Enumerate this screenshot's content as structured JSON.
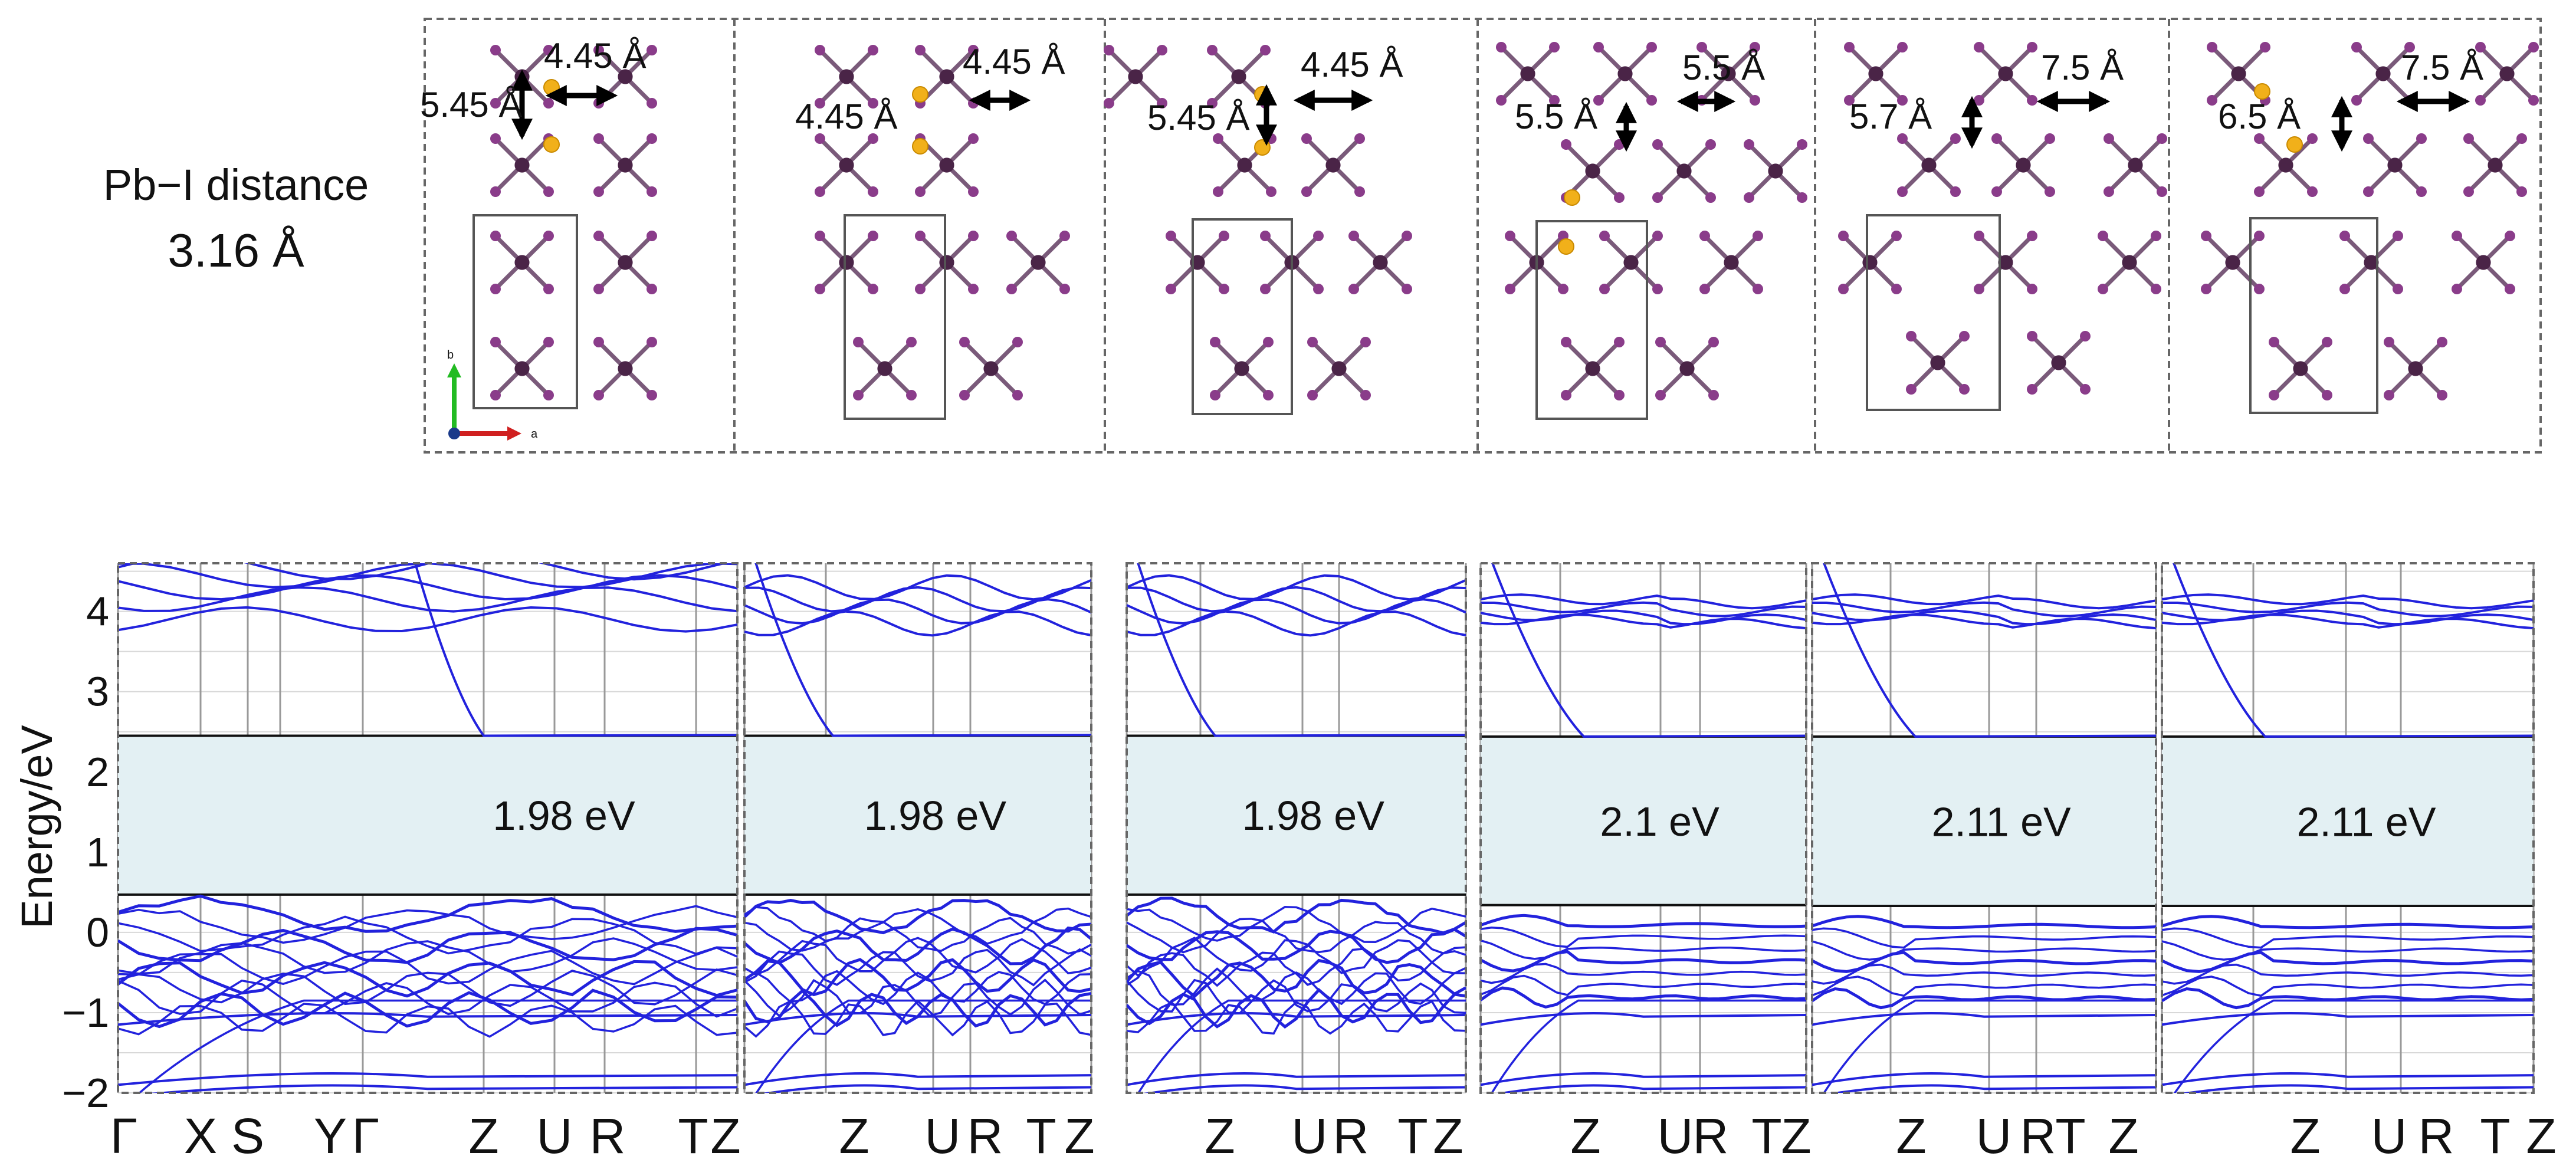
{
  "colors": {
    "atom_pb": "#4a2447",
    "atom_i": "#8a3c8a",
    "atom_li": "#f1b01a",
    "band": "#2222dd",
    "gap_fill": "#e3f0f3"
  },
  "structure_row": {
    "left_label_line1": "Pb−I distance",
    "left_label_line2": "3.16 Å",
    "axes_labels": {
      "b": "b",
      "a": "a"
    },
    "panels": [
      {
        "vertical_distance": "5.45 Å",
        "horizontal_distance": "4.45 Å"
      },
      {
        "vertical_distance": "4.45 Å",
        "horizontal_distance": "4.45 Å"
      },
      {
        "vertical_distance": "5.45 Å",
        "horizontal_distance": "4.45 Å"
      },
      {
        "vertical_distance": "5.5 Å",
        "horizontal_distance": "5.5 Å"
      },
      {
        "vertical_distance": "5.7 Å",
        "horizontal_distance": "7.5 Å"
      },
      {
        "vertical_distance": "6.5 Å",
        "horizontal_distance": "7.5 Å"
      }
    ]
  },
  "chart_data": {
    "type": "line",
    "title": "",
    "ylabel": "Energy/eV",
    "xlabel": "",
    "ylim": [
      -2,
      4.6
    ],
    "y_ticks": [
      -2,
      -1,
      0,
      1,
      2,
      3,
      4
    ],
    "y_tick_labels": [
      "−2",
      "−1",
      "0",
      "1",
      "2",
      "3",
      "4"
    ],
    "panels": [
      {
        "k_labels": [
          "Γ",
          "X",
          "S",
          "Y",
          "Γ",
          "Z",
          "U",
          "R",
          "T",
          "Z"
        ],
        "gap_label": "1.98 eV",
        "band_gap_eV": 1.98,
        "cbm": 2.45,
        "vbm": 0.47
      },
      {
        "k_labels": [
          "Z",
          "U",
          "R",
          "T",
          "Z"
        ],
        "gap_label": "1.98 eV",
        "band_gap_eV": 1.98,
        "cbm": 2.45,
        "vbm": 0.47
      },
      {
        "k_labels": [
          "Z",
          "U",
          "R",
          "T",
          "Z"
        ],
        "gap_label": "1.98 eV",
        "band_gap_eV": 1.98,
        "cbm": 2.45,
        "vbm": 0.47
      },
      {
        "k_labels": [
          "Z",
          "U",
          "R",
          "T",
          "Z"
        ],
        "gap_label": "2.1 eV",
        "band_gap_eV": 2.1,
        "cbm": 2.44,
        "vbm": 0.34
      },
      {
        "k_labels": [
          "Z",
          "U",
          "R",
          "T",
          "Z"
        ],
        "gap_label": "2.11 eV",
        "band_gap_eV": 2.11,
        "cbm": 2.44,
        "vbm": 0.33
      },
      {
        "k_labels": [
          "Z",
          "U",
          "R",
          "T",
          "Z"
        ],
        "gap_label": "2.11 eV",
        "band_gap_eV": 2.11,
        "cbm": 2.44,
        "vbm": 0.33
      }
    ]
  }
}
